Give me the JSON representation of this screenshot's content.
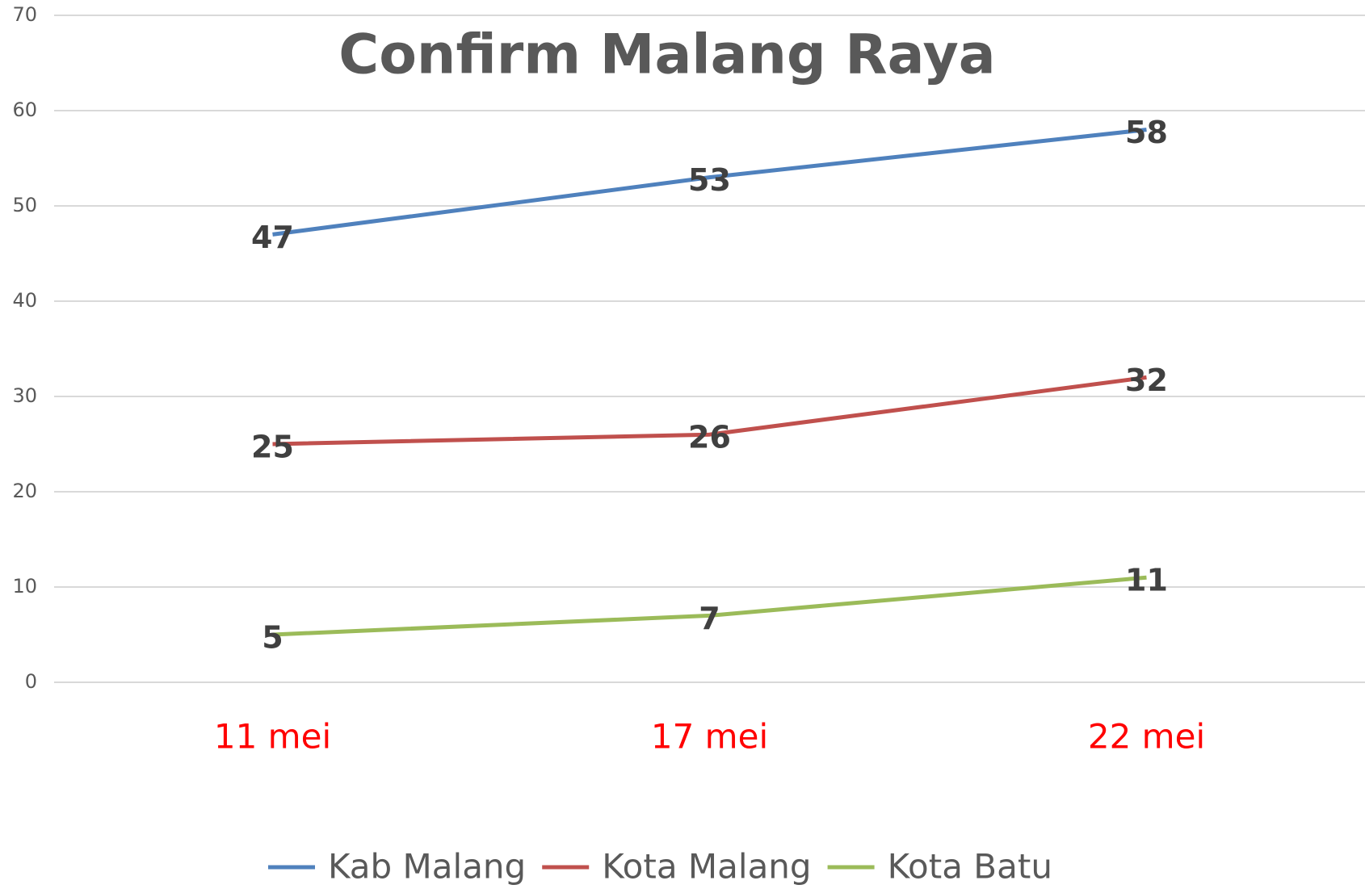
{
  "chart_data": {
    "type": "line",
    "title": "Confirm Malang Raya",
    "categories": [
      "11 mei",
      "17 mei",
      "22 mei"
    ],
    "series": [
      {
        "name": "Kab Malang",
        "color": "#4f81bd",
        "values": [
          47,
          53,
          58
        ]
      },
      {
        "name": "Kota Malang",
        "color": "#c0504d",
        "values": [
          25,
          26,
          32
        ]
      },
      {
        "name": "Kota Batu",
        "color": "#9bbb59",
        "values": [
          5,
          7,
          11
        ]
      }
    ],
    "ylim": [
      0,
      70
    ],
    "yticks": [
      0,
      10,
      20,
      30,
      40,
      50,
      60,
      70
    ],
    "grid": true,
    "category_color": "#ff0000",
    "legend": "bottom"
  }
}
